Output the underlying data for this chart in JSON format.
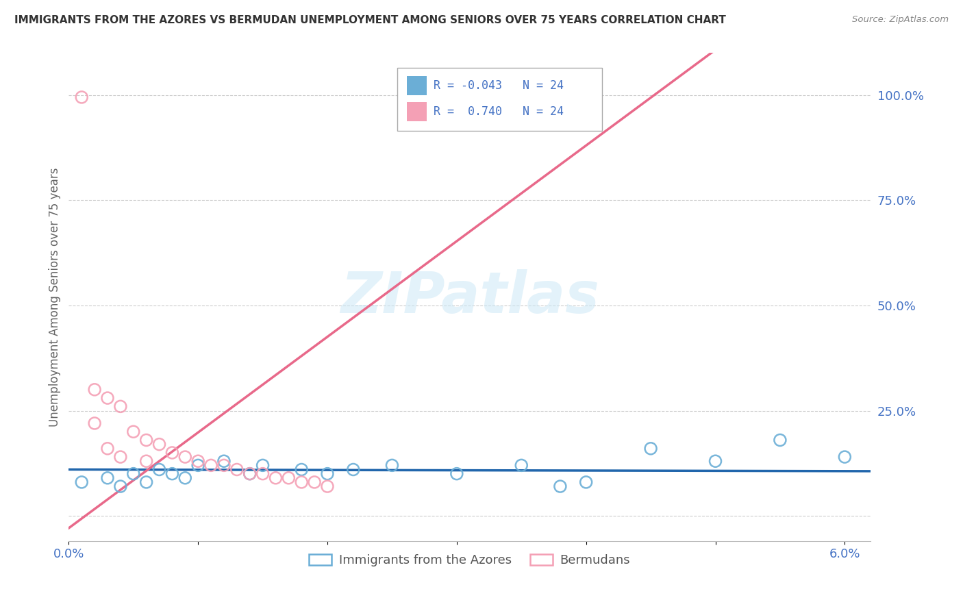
{
  "title": "IMMIGRANTS FROM THE AZORES VS BERMUDAN UNEMPLOYMENT AMONG SENIORS OVER 75 YEARS CORRELATION CHART",
  "source": "Source: ZipAtlas.com",
  "ylabel": "Unemployment Among Seniors over 75 years",
  "legend_label1": "Immigrants from the Azores",
  "legend_label2": "Bermudans",
  "legend_R1": "-0.043",
  "legend_R2": " 0.740",
  "legend_N1": "24",
  "legend_N2": "24",
  "blue_color": "#6baed6",
  "pink_color": "#f4a0b5",
  "blue_line_color": "#2166ac",
  "pink_line_color": "#e8698a",
  "blue_x": [
    0.001,
    0.003,
    0.004,
    0.005,
    0.006,
    0.007,
    0.008,
    0.009,
    0.01,
    0.012,
    0.014,
    0.015,
    0.018,
    0.02,
    0.022,
    0.025,
    0.03,
    0.035,
    0.04,
    0.05,
    0.055,
    0.06,
    0.045,
    0.038
  ],
  "blue_y": [
    0.08,
    0.09,
    0.07,
    0.1,
    0.08,
    0.11,
    0.1,
    0.09,
    0.12,
    0.13,
    0.1,
    0.12,
    0.11,
    0.1,
    0.11,
    0.12,
    0.1,
    0.12,
    0.08,
    0.13,
    0.18,
    0.14,
    0.16,
    0.07
  ],
  "pink_x": [
    0.001,
    0.002,
    0.003,
    0.004,
    0.005,
    0.006,
    0.007,
    0.008,
    0.009,
    0.01,
    0.011,
    0.012,
    0.013,
    0.014,
    0.015,
    0.016,
    0.017,
    0.018,
    0.019,
    0.02,
    0.002,
    0.003,
    0.004,
    0.006
  ],
  "pink_y": [
    0.995,
    0.3,
    0.28,
    0.26,
    0.2,
    0.18,
    0.17,
    0.15,
    0.14,
    0.13,
    0.12,
    0.12,
    0.11,
    0.1,
    0.1,
    0.09,
    0.09,
    0.08,
    0.08,
    0.07,
    0.22,
    0.16,
    0.14,
    0.13
  ],
  "xlim": [
    0.0,
    0.062
  ],
  "ylim": [
    -0.06,
    1.1
  ],
  "ytick_vals": [
    0.0,
    0.25,
    0.5,
    0.75,
    1.0
  ],
  "ytick_labels": [
    "",
    "25.0%",
    "50.0%",
    "75.0%",
    "100.0%"
  ],
  "xtick_vals": [
    0.0,
    0.01,
    0.02,
    0.03,
    0.04,
    0.05,
    0.06
  ],
  "xtick_labels": [
    "0.0%",
    "",
    "",
    "",
    "",
    "",
    "6.0%"
  ],
  "watermark_text": "ZIPatlas",
  "background_color": "#ffffff",
  "grid_color": "#cccccc",
  "tick_color": "#4472C4",
  "title_color": "#333333",
  "source_color": "#888888",
  "ylabel_color": "#666666"
}
